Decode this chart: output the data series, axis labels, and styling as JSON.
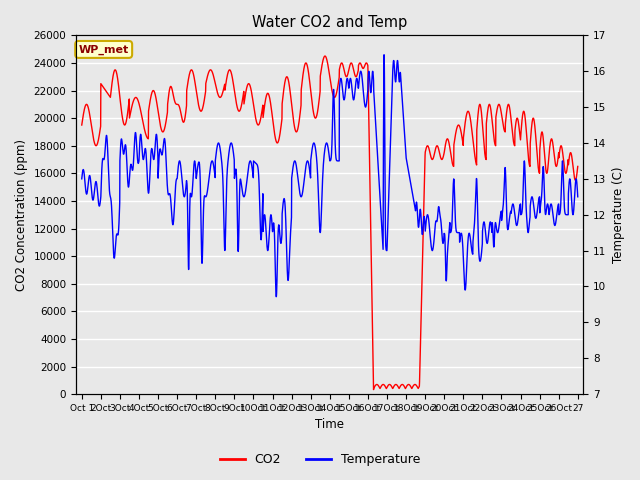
{
  "title": "Water CO2 and Temp",
  "xlabel": "Time",
  "ylabel_left": "CO2 Concentration (ppm)",
  "ylabel_right": "Temperature (C)",
  "annotation": "WP_met",
  "annotation_bg": "#ffffcc",
  "annotation_border": "#ccaa00",
  "ylim_left": [
    0,
    26000
  ],
  "ylim_right": [
    7.0,
    17.0
  ],
  "yticks_left": [
    0,
    2000,
    4000,
    6000,
    8000,
    10000,
    12000,
    14000,
    16000,
    18000,
    20000,
    22000,
    24000,
    26000
  ],
  "yticks_right": [
    7.0,
    8.0,
    9.0,
    10.0,
    11.0,
    12.0,
    13.0,
    14.0,
    15.0,
    16.0,
    17.0
  ],
  "co2_color": "red",
  "temp_color": "blue",
  "bg_color": "#e8e8e8",
  "grid_color": "white",
  "legend_labels": [
    "CO2",
    "Temperature"
  ]
}
